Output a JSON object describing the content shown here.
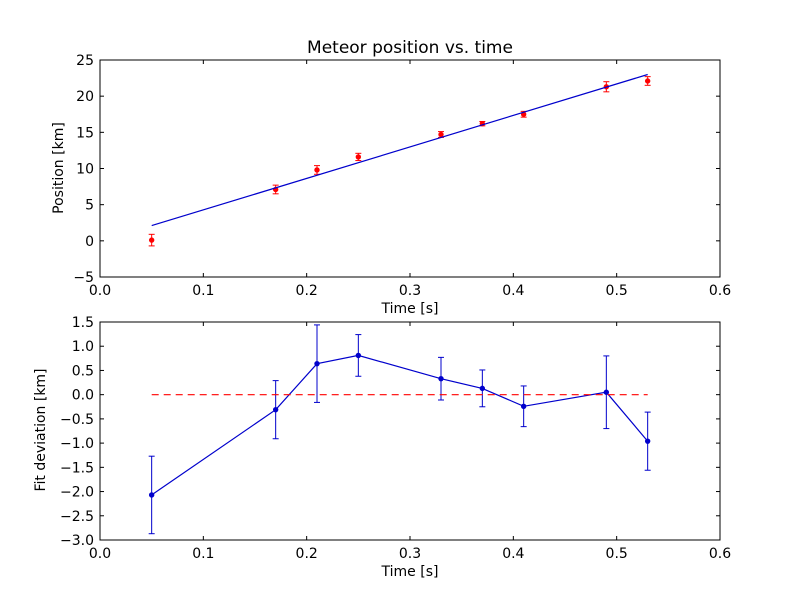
{
  "chart_data": [
    {
      "type": "scatter",
      "title": "Meteor position vs. time",
      "xlabel": "Time [s]",
      "ylabel": "Position [km]",
      "xlim": [
        0.0,
        0.6
      ],
      "ylim": [
        -5,
        25
      ],
      "x_ticks": [
        0.0,
        0.1,
        0.2,
        0.3,
        0.4,
        0.5,
        0.6
      ],
      "x_tick_labels": [
        "0.0",
        "0.1",
        "0.2",
        "0.3",
        "0.4",
        "0.5",
        "0.6"
      ],
      "y_ticks": [
        -5,
        0,
        5,
        10,
        15,
        20,
        25
      ],
      "y_tick_labels": [
        "−5",
        "0",
        "5",
        "10",
        "15",
        "20",
        "25"
      ],
      "grid": false,
      "series": [
        {
          "kind": "errorbar-points",
          "color": "#ff0000",
          "x": [
            0.05,
            0.17,
            0.21,
            0.25,
            0.33,
            0.37,
            0.41,
            0.49,
            0.53
          ],
          "y": [
            0.1,
            7.1,
            9.8,
            11.6,
            14.7,
            16.2,
            17.5,
            21.3,
            22.1
          ],
          "yerr": [
            0.8,
            0.6,
            0.6,
            0.5,
            0.4,
            0.3,
            0.4,
            0.7,
            0.6
          ]
        },
        {
          "kind": "line",
          "color": "#0000cc",
          "x": [
            0.05,
            0.53
          ],
          "y": [
            2.1,
            23.0
          ]
        }
      ]
    },
    {
      "type": "line",
      "title": "",
      "xlabel": "Time [s]",
      "ylabel": "Fit deviation [km]",
      "xlim": [
        0.0,
        0.6
      ],
      "ylim": [
        -3.0,
        1.5
      ],
      "x_ticks": [
        0.0,
        0.1,
        0.2,
        0.3,
        0.4,
        0.5,
        0.6
      ],
      "x_tick_labels": [
        "0.0",
        "0.1",
        "0.2",
        "0.3",
        "0.4",
        "0.5",
        "0.6"
      ],
      "y_ticks": [
        -3.0,
        -2.5,
        -2.0,
        -1.5,
        -1.0,
        -0.5,
        0.0,
        0.5,
        1.0,
        1.5
      ],
      "y_tick_labels": [
        "−3.0",
        "−2.5",
        "−2.0",
        "−1.5",
        "−1.0",
        "−0.5",
        "0.0",
        "0.5",
        "1.0",
        "1.5"
      ],
      "grid": false,
      "series": [
        {
          "kind": "errorbar-line",
          "color": "#0000cc",
          "x": [
            0.05,
            0.17,
            0.21,
            0.25,
            0.33,
            0.37,
            0.41,
            0.49,
            0.53
          ],
          "y": [
            -2.07,
            -0.31,
            0.64,
            0.81,
            0.33,
            0.13,
            -0.24,
            0.05,
            -0.96
          ],
          "yerr": [
            0.8,
            0.6,
            0.8,
            0.43,
            0.44,
            0.38,
            0.42,
            0.75,
            0.6
          ]
        },
        {
          "kind": "dashed-line",
          "color": "#ff0000",
          "x": [
            0.05,
            0.53
          ],
          "y": [
            0.0,
            0.0
          ]
        }
      ]
    }
  ]
}
